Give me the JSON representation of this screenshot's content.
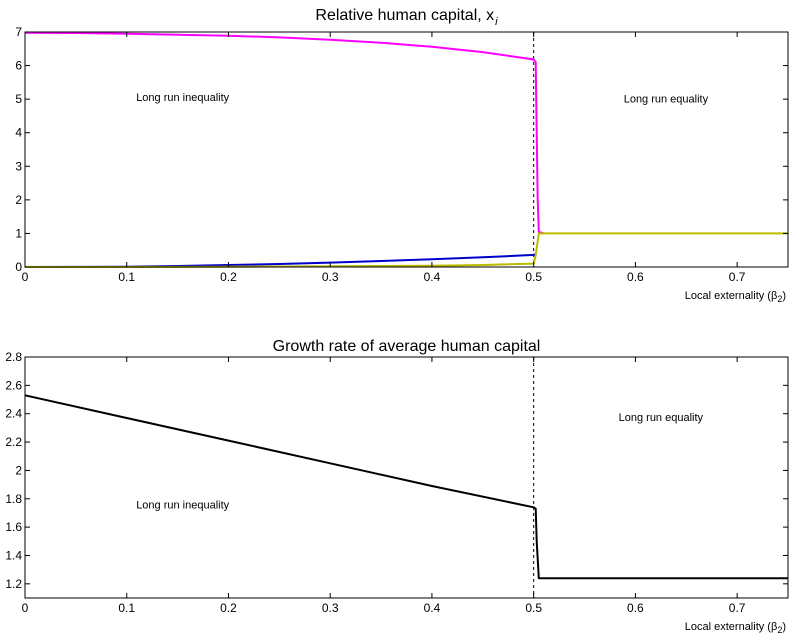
{
  "chart_data": [
    {
      "type": "line",
      "title": "Relative human capital, x",
      "title_subscript": "i",
      "xlabel": "Local externality (β",
      "xlabel_subscript": "2",
      "xlabel_close": ")",
      "xlim": [
        0,
        0.75
      ],
      "ylim": [
        0,
        7
      ],
      "xticks": [
        0,
        0.1,
        0.2,
        0.3,
        0.4,
        0.5,
        0.6,
        0.7
      ],
      "xtick_labels": [
        "0",
        "0.1",
        "0.2",
        "0.3",
        "0.4",
        "0.5",
        "0.6",
        "0.7"
      ],
      "yticks": [
        0,
        1,
        2,
        3,
        4,
        5,
        6,
        7
      ],
      "ytick_labels": [
        "0",
        "1",
        "2",
        "3",
        "4",
        "5",
        "6",
        "7"
      ],
      "vline": 0.5,
      "annotations": [
        {
          "text": "Long run inequality",
          "x": 0.155,
          "y": 4.95
        },
        {
          "text": "Long run equality",
          "x": 0.63,
          "y": 4.9
        }
      ],
      "series": [
        {
          "color": "#ff00ff",
          "x": [
            0,
            0.05,
            0.1,
            0.15,
            0.2,
            0.25,
            0.3,
            0.35,
            0.4,
            0.45,
            0.5,
            0.502,
            0.503,
            0.504,
            0.505,
            0.51
          ],
          "y": [
            6.98,
            6.97,
            6.95,
            6.92,
            6.89,
            6.84,
            6.77,
            6.68,
            6.56,
            6.4,
            6.18,
            6.1,
            4.0,
            2.0,
            1.05,
            1.0
          ]
        },
        {
          "color": "#0000cc",
          "x": [
            0,
            0.1,
            0.15,
            0.2,
            0.25,
            0.3,
            0.35,
            0.4,
            0.45,
            0.5,
            0.502
          ],
          "y": [
            0.0,
            0.01,
            0.03,
            0.06,
            0.09,
            0.13,
            0.18,
            0.23,
            0.29,
            0.36,
            0.38
          ]
        },
        {
          "color": "#bbbb00",
          "x": [
            0,
            0.1,
            0.2,
            0.3,
            0.4,
            0.45,
            0.5,
            0.502,
            0.505,
            0.51,
            0.6,
            0.7,
            0.75
          ],
          "y": [
            0.0,
            0.0,
            0.01,
            0.02,
            0.04,
            0.06,
            0.1,
            0.35,
            1.0,
            1.0,
            1.0,
            1.0,
            1.0
          ]
        }
      ]
    },
    {
      "type": "line",
      "title": "Growth rate of average human capital",
      "xlabel": "Local externality (β",
      "xlabel_subscript": "2",
      "xlabel_close": ")",
      "xlim": [
        0,
        0.75
      ],
      "ylim": [
        1.1,
        2.8
      ],
      "xticks": [
        0,
        0.1,
        0.2,
        0.3,
        0.4,
        0.5,
        0.6,
        0.7
      ],
      "xtick_labels": [
        "0",
        "0.1",
        "0.2",
        "0.3",
        "0.4",
        "0.5",
        "0.6",
        "0.7"
      ],
      "yticks": [
        1.2,
        1.4,
        1.6,
        1.8,
        2.0,
        2.2,
        2.4,
        2.6,
        2.8
      ],
      "ytick_labels": [
        "1.2",
        "1.4",
        "1.6",
        "1.8",
        "2",
        "2.2",
        "2.4",
        "2.6",
        "2.8"
      ],
      "vline": 0.5,
      "annotations": [
        {
          "text": "Long run inequality",
          "x": 0.155,
          "y": 1.73
        },
        {
          "text": "Long run equality",
          "x": 0.625,
          "y": 2.35
        }
      ],
      "series": [
        {
          "color": "#000000",
          "x": [
            0,
            0.1,
            0.2,
            0.3,
            0.4,
            0.5,
            0.502,
            0.503,
            0.505,
            0.6,
            0.7,
            0.75
          ],
          "y": [
            2.53,
            2.37,
            2.21,
            2.05,
            1.89,
            1.74,
            1.73,
            1.5,
            1.24,
            1.24,
            1.24,
            1.24
          ]
        }
      ]
    }
  ]
}
